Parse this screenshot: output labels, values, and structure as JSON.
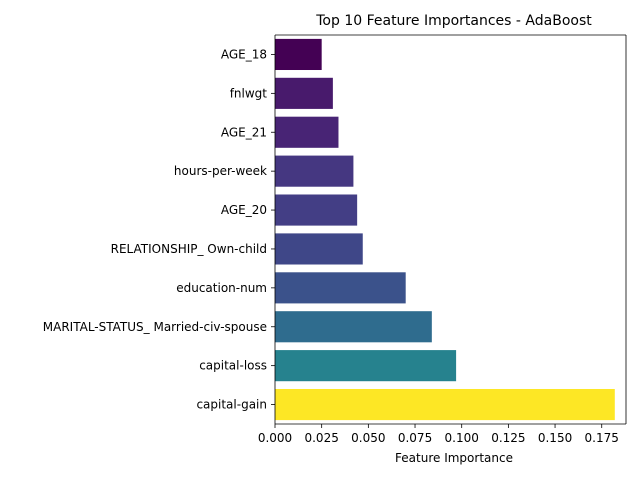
{
  "chart_data": {
    "type": "bar",
    "orientation": "horizontal",
    "title": "Top 10 Feature Importances - AdaBoost",
    "xlabel": "Feature Importance",
    "ylabel": "",
    "categories": [
      "AGE_18",
      "fnlwgt",
      "AGE_21",
      "hours-per-week",
      "AGE_20",
      "RELATIONSHIP_ Own-child",
      "education-num",
      "MARITAL-STATUS_ Married-civ-spouse",
      "capital-loss",
      "capital-gain"
    ],
    "values": [
      0.025,
      0.031,
      0.034,
      0.042,
      0.044,
      0.047,
      0.07,
      0.084,
      0.097,
      0.182
    ],
    "colors": [
      "#440154",
      "#481a6c",
      "#482475",
      "#453781",
      "#433e85",
      "#3f4788",
      "#3b528b",
      "#2f6c8e",
      "#26828e",
      "#fde725"
    ],
    "xlim": [
      0,
      0.188
    ],
    "xticks": [
      0.0,
      0.025,
      0.05,
      0.075,
      0.1,
      0.125,
      0.15,
      0.175
    ],
    "xtick_labels": [
      "0.000",
      "0.025",
      "0.050",
      "0.075",
      "0.100",
      "0.125",
      "0.150",
      "0.175"
    ],
    "grid": false,
    "legend": "none"
  }
}
